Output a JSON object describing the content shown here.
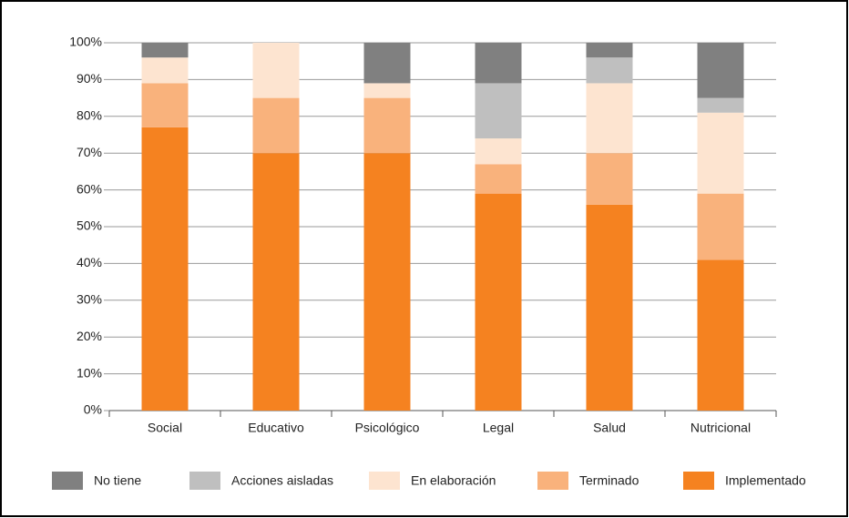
{
  "chart_data": {
    "type": "stacked_bar",
    "categories": [
      "Social",
      "Educativo",
      "Psicológico",
      "Legal",
      "Salud",
      "Nutricional"
    ],
    "series": [
      {
        "name": "No tiene",
        "color": "#808080",
        "values": [
          4,
          0,
          11,
          11,
          4,
          15
        ]
      },
      {
        "name": "Acciones aisladas",
        "color": "#bfbfbf",
        "values": [
          0,
          0,
          0,
          15,
          7,
          4
        ]
      },
      {
        "name": "En elaboración",
        "color": "#fde4d0",
        "values": [
          7,
          15,
          4,
          7,
          19,
          22
        ]
      },
      {
        "name": "Terminado",
        "color": "#f9b27c",
        "values": [
          12,
          15,
          15,
          8,
          14,
          18
        ]
      },
      {
        "name": "Implementado",
        "color": "#f58220",
        "values": [
          77,
          70,
          70,
          59,
          56,
          41
        ]
      }
    ],
    "ylim": [
      0,
      100
    ],
    "yticks": [
      {
        "value": 0,
        "label": "0%"
      },
      {
        "value": 10,
        "label": "10%"
      },
      {
        "value": 20,
        "label": "20%"
      },
      {
        "value": 30,
        "label": "30%"
      },
      {
        "value": 40,
        "label": "40%"
      },
      {
        "value": 50,
        "label": "50%"
      },
      {
        "value": 60,
        "label": "60%"
      },
      {
        "value": 70,
        "label": "70%"
      },
      {
        "value": 80,
        "label": "80%"
      },
      {
        "value": 90,
        "label": "90%"
      },
      {
        "value": 100,
        "label": "100%"
      }
    ],
    "grid": true,
    "legend": "bottom"
  }
}
